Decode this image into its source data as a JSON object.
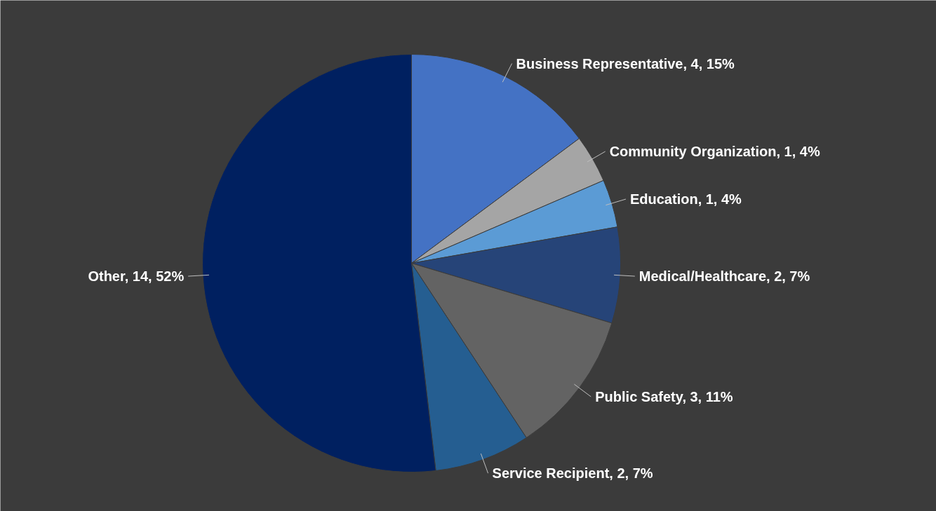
{
  "chart_data": {
    "type": "pie",
    "categories": [
      "Business Representative",
      "Community Organization",
      "Education",
      "Medical/Healthcare",
      "Public Safety",
      "Service Recipient",
      "Other"
    ],
    "values": [
      4,
      1,
      1,
      2,
      3,
      2,
      14
    ],
    "value_labels": [
      "4, 15%",
      "1, 4%",
      "1, 4%",
      "2, 7%",
      "3, 11%",
      "2, 7%",
      "14, 52%"
    ],
    "colors": [
      "#4472c4",
      "#a5a5a5",
      "#5b9bd5",
      "#264478",
      "#636363",
      "#255e91",
      "#002060"
    ],
    "legend": false
  }
}
